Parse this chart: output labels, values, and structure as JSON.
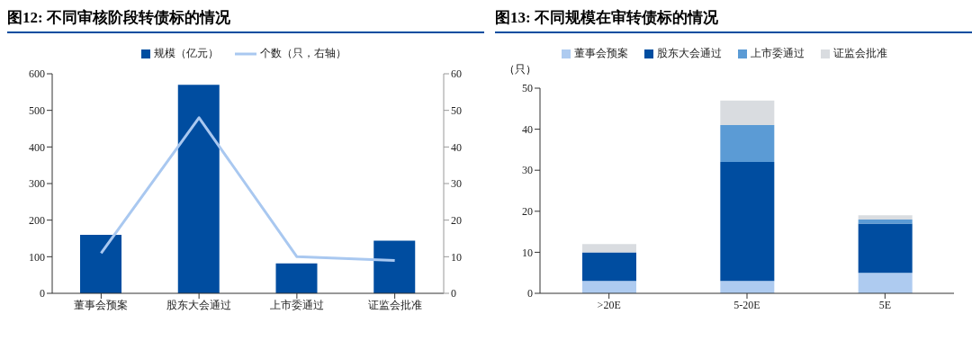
{
  "chart_data": [
    {
      "type": "bar",
      "title": "图12: 不同审核阶段转债标的情况",
      "categories": [
        "董事会预案",
        "股东大会通过",
        "上市委通过",
        "证监会批准"
      ],
      "series": [
        {
          "name": "规模（亿元）",
          "color": "#004da0",
          "values": [
            160,
            570,
            82,
            144
          ]
        },
        {
          "name": "个数（只，右轴）",
          "type": "line",
          "axis": "y2",
          "color": "#a9c8f0",
          "values": [
            11,
            48,
            10,
            9
          ]
        }
      ],
      "ylim": [
        0,
        600
      ],
      "yticks": [
        0,
        100,
        200,
        300,
        400,
        500,
        600
      ],
      "y2lim": [
        0,
        60
      ],
      "y2ticks": [
        0,
        10,
        20,
        30,
        40,
        50,
        60
      ],
      "legend": "top",
      "marker": "none"
    },
    {
      "type": "bar",
      "title": "图13: 不同规模在审转债标的情况",
      "ylabel": "（只）",
      "categories": [
        ">20E",
        "5-20E",
        "5E"
      ],
      "stacked": true,
      "series": [
        {
          "name": "董事会预案",
          "color": "#aecbf0",
          "values": [
            3,
            3,
            5
          ]
        },
        {
          "name": "股东大会通过",
          "color": "#004da0",
          "values": [
            7,
            29,
            12
          ]
        },
        {
          "name": "上市委通过",
          "color": "#5b9bd5",
          "values": [
            0,
            9,
            1
          ]
        },
        {
          "name": "证监会批准",
          "color": "#d9dce0",
          "values": [
            2,
            6,
            1
          ]
        }
      ],
      "ylim": [
        0,
        50
      ],
      "yticks": [
        0,
        10,
        20,
        30,
        40,
        50
      ],
      "legend": "top"
    }
  ]
}
